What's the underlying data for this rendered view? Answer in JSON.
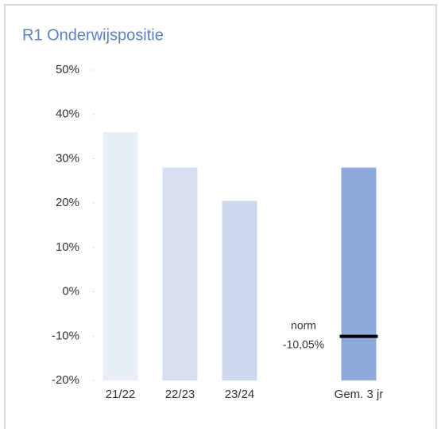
{
  "chart_data": {
    "type": "bar",
    "title": "R1 Onderwijspositie",
    "categories": [
      "21/22",
      "22/23",
      "23/24",
      null,
      "Gem. 3 jr"
    ],
    "values": [
      36,
      28,
      20.5,
      null,
      28
    ],
    "colors": [
      "#e9eff9",
      "#d5dff0",
      "#cbd8ee",
      null,
      "#8eaadb"
    ],
    "ylim": [
      -20,
      50
    ],
    "yticks": [
      {
        "value": -20,
        "label": "-20%"
      },
      {
        "value": -10,
        "label": "-10%"
      },
      {
        "value": 0,
        "label": "0%"
      },
      {
        "value": 10,
        "label": "10%"
      },
      {
        "value": 20,
        "label": "20%"
      },
      {
        "value": 30,
        "label": "30%"
      },
      {
        "value": 40,
        "label": "40%"
      },
      {
        "value": 50,
        "label": "50%"
      }
    ],
    "norm": {
      "text": "norm",
      "value": -10.05,
      "value_label": "-10,05%",
      "color": "#000000"
    }
  }
}
